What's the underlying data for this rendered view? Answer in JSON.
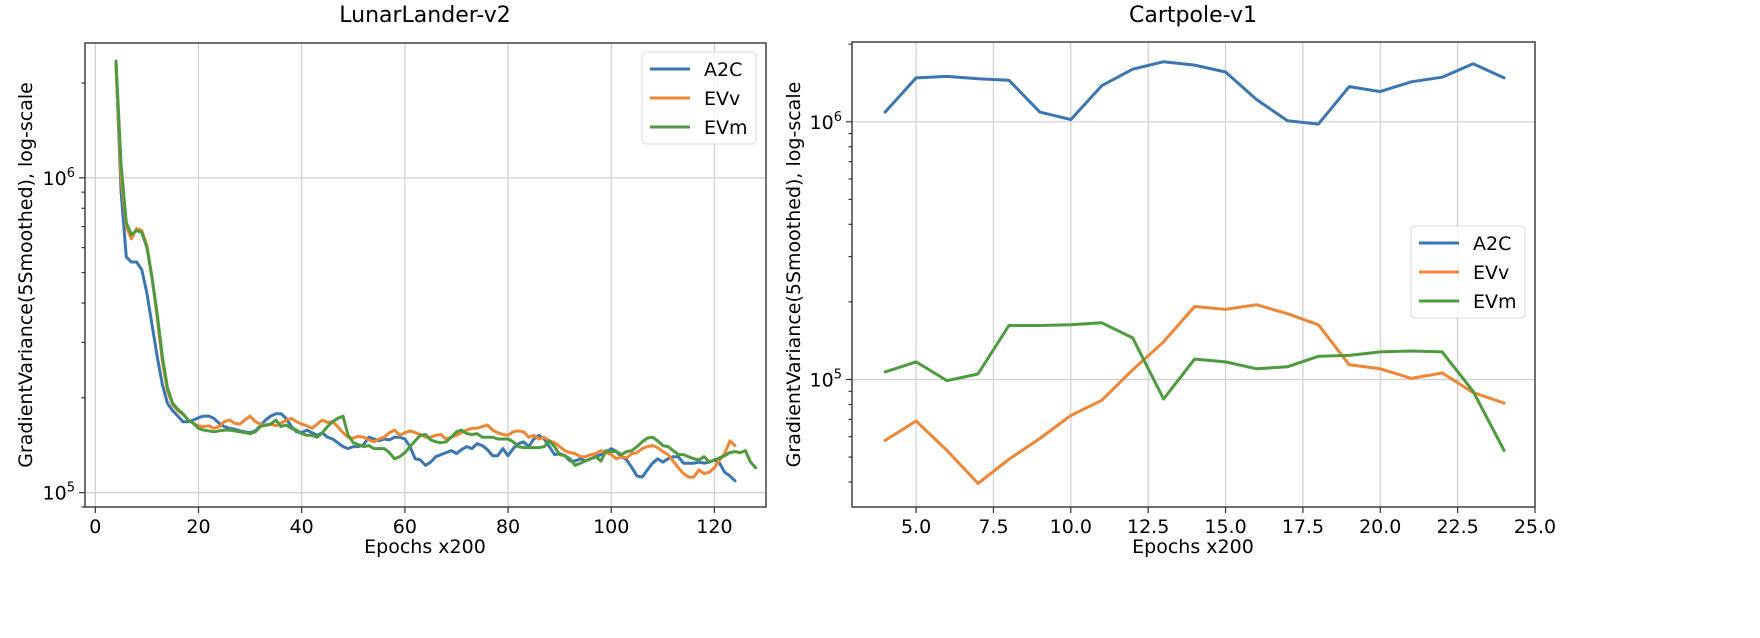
{
  "chart_data": [
    {
      "type": "line",
      "title": "LunarLander-v2",
      "xlabel": "Epochs x200",
      "ylabel": "GradientVariance(5Smoothed), log-scale",
      "yscale": "log",
      "xlim": [
        -2,
        130
      ],
      "ylim": [
        90000,
        2680000
      ],
      "xticks": [
        0,
        20,
        40,
        60,
        80,
        100,
        120
      ],
      "xtick_labels": [
        "0",
        "20",
        "40",
        "60",
        "80",
        "100",
        "120"
      ],
      "yticks": [
        100000,
        1000000
      ],
      "ytick_labels": [
        {
          "base": "10",
          "exp": "5"
        },
        {
          "base": "10",
          "exp": "6"
        }
      ],
      "grid": true,
      "legend_position": "top-right",
      "x_start": 4,
      "x_step": 1,
      "series": [
        {
          "name": "A2C",
          "color": "#3a76af",
          "values": [
            2300000,
            900000,
            560000,
            540000,
            540000,
            510000,
            430000,
            340000,
            270000,
            220000,
            192000,
            182000,
            175000,
            168000,
            168000,
            170000,
            173000,
            175000,
            175000,
            172000,
            166000,
            162000,
            160000,
            159000,
            157000,
            156000,
            155000,
            157000,
            163000,
            170000,
            175000,
            178000,
            178000,
            172000,
            162000,
            156000,
            155000,
            158000,
            155000,
            152000,
            155000,
            150000,
            148000,
            144000,
            140000,
            138000,
            140000,
            140000,
            142000,
            150000,
            148000,
            146000,
            148000,
            147000,
            150000,
            150000,
            148000,
            140000,
            128000,
            127000,
            122000,
            125000,
            130000,
            132000,
            134000,
            136000,
            133000,
            137000,
            140000,
            138000,
            143000,
            141000,
            137000,
            131000,
            131000,
            138000,
            131000,
            138000,
            143000,
            145000,
            140000,
            148000,
            152000,
            148000,
            140000,
            132000,
            133000,
            131000,
            126000,
            126000,
            128000,
            126000,
            128000,
            130000,
            132000,
            134000,
            138000,
            135000,
            130000,
            127000,
            120000,
            113000,
            112000,
            118000,
            124000,
            128000,
            125000,
            128000,
            130000,
            130000,
            124000,
            124000,
            124000,
            125000,
            124000,
            125000,
            127000,
            124000,
            116000,
            113000,
            109000
          ]
        },
        {
          "name": "EVv",
          "color": "#ef8636",
          "values": [
            2250000,
            1000000,
            700000,
            640000,
            690000,
            680000,
            610000,
            480000,
            360000,
            260000,
            210000,
            190000,
            182000,
            177000,
            170000,
            166000,
            163000,
            162000,
            163000,
            160000,
            162000,
            168000,
            170000,
            166000,
            165000,
            170000,
            175000,
            168000,
            165000,
            163000,
            165000,
            163000,
            166000,
            170000,
            172000,
            168000,
            165000,
            163000,
            160000,
            165000,
            170000,
            167000,
            168000,
            162000,
            155000,
            150000,
            149000,
            151000,
            150000,
            147000,
            145000,
            148000,
            150000,
            155000,
            158000,
            152000,
            155000,
            157000,
            155000,
            153000,
            150000,
            150000,
            152000,
            153000,
            148000,
            150000,
            152000,
            155000,
            158000,
            160000,
            160000,
            162000,
            164000,
            158000,
            155000,
            153000,
            152000,
            156000,
            157000,
            156000,
            150000,
            152000,
            148000,
            150000,
            146000,
            144000,
            140000,
            136000,
            134000,
            133000,
            130000,
            130000,
            132000,
            133000,
            136000,
            134000,
            132000,
            128000,
            130000,
            129000,
            133000,
            134000,
            138000,
            140000,
            141000,
            139000,
            135000,
            132000,
            126000,
            120000,
            115000,
            112000,
            112000,
            118000,
            115000,
            116000,
            120000,
            127000,
            133000,
            146000,
            141000
          ]
        },
        {
          "name": "EVm",
          "color": "#4e9a3e",
          "values": [
            2350000,
            1100000,
            720000,
            660000,
            680000,
            670000,
            600000,
            480000,
            370000,
            270000,
            215000,
            192000,
            184000,
            178000,
            170000,
            166000,
            160000,
            158000,
            157000,
            156000,
            157000,
            158000,
            158000,
            157000,
            156000,
            155000,
            154000,
            156000,
            162000,
            164000,
            165000,
            170000,
            162000,
            164000,
            160000,
            158000,
            154000,
            152000,
            152000,
            150000,
            155000,
            162000,
            168000,
            172000,
            175000,
            152000,
            144000,
            142000,
            140000,
            141000,
            138000,
            138000,
            138000,
            134000,
            128000,
            130000,
            134000,
            140000,
            146000,
            152000,
            153000,
            147000,
            145000,
            144000,
            145000,
            150000,
            156000,
            158000,
            154000,
            153000,
            154000,
            150000,
            150000,
            150000,
            148000,
            148000,
            148000,
            145000,
            140000,
            139000,
            139000,
            139000,
            139000,
            140000,
            146000,
            140000,
            132000,
            131000,
            128000,
            122000,
            124000,
            126000,
            128000,
            130000,
            126000,
            136000,
            135000,
            135000,
            132000,
            135000,
            136000,
            140000,
            145000,
            149000,
            150000,
            146000,
            141000,
            140000,
            136000,
            132000,
            132000,
            130000,
            128000,
            127000,
            130000,
            125000,
            127000,
            129000,
            131000,
            134000,
            135000,
            134000,
            136000,
            125000,
            120000
          ]
        }
      ]
    },
    {
      "type": "line",
      "title": "Cartpole-v1",
      "xlabel": "Epochs x200",
      "ylabel": "GradientVariance(5Smoothed), log-scale",
      "yscale": "log",
      "xlim": [
        2.93,
        25.0
      ],
      "ylim": [
        32000,
        2040000
      ],
      "xticks": [
        5.0,
        7.5,
        10.0,
        12.5,
        15.0,
        17.5,
        20.0,
        22.5,
        25.0
      ],
      "xtick_labels": [
        "5.0",
        "7.5",
        "10.0",
        "12.5",
        "15.0",
        "17.5",
        "20.0",
        "22.5",
        "25.0"
      ],
      "yticks": [
        100000,
        1000000
      ],
      "ytick_labels": [
        {
          "base": "10",
          "exp": "5"
        },
        {
          "base": "10",
          "exp": "6"
        }
      ],
      "grid": true,
      "legend_position": "center-right",
      "x": [
        4,
        5,
        6,
        7,
        8,
        9,
        10,
        11,
        12,
        13,
        14,
        15,
        16,
        17,
        18,
        19,
        20,
        21,
        22,
        23,
        24
      ],
      "series": [
        {
          "name": "A2C",
          "color": "#3a76af",
          "values": [
            1090000,
            1480000,
            1500000,
            1470000,
            1450000,
            1090000,
            1020000,
            1380000,
            1600000,
            1710000,
            1660000,
            1560000,
            1220000,
            1010000,
            980000,
            1370000,
            1310000,
            1430000,
            1490000,
            1680000,
            1480000
          ]
        },
        {
          "name": "EVv",
          "color": "#ef8636",
          "values": [
            58000,
            69000,
            53000,
            39500,
            49000,
            59000,
            72500,
            83000,
            109000,
            140000,
            192000,
            187000,
            195000,
            180000,
            163000,
            114000,
            110000,
            101000,
            106000,
            89000,
            81000
          ]
        },
        {
          "name": "EVm",
          "color": "#4e9a3e",
          "values": [
            107000,
            117000,
            99000,
            105000,
            162000,
            162000,
            163000,
            166000,
            145000,
            84000,
            120000,
            117000,
            110000,
            112000,
            123000,
            124000,
            128000,
            129000,
            128000,
            90000,
            53000
          ]
        }
      ]
    }
  ]
}
